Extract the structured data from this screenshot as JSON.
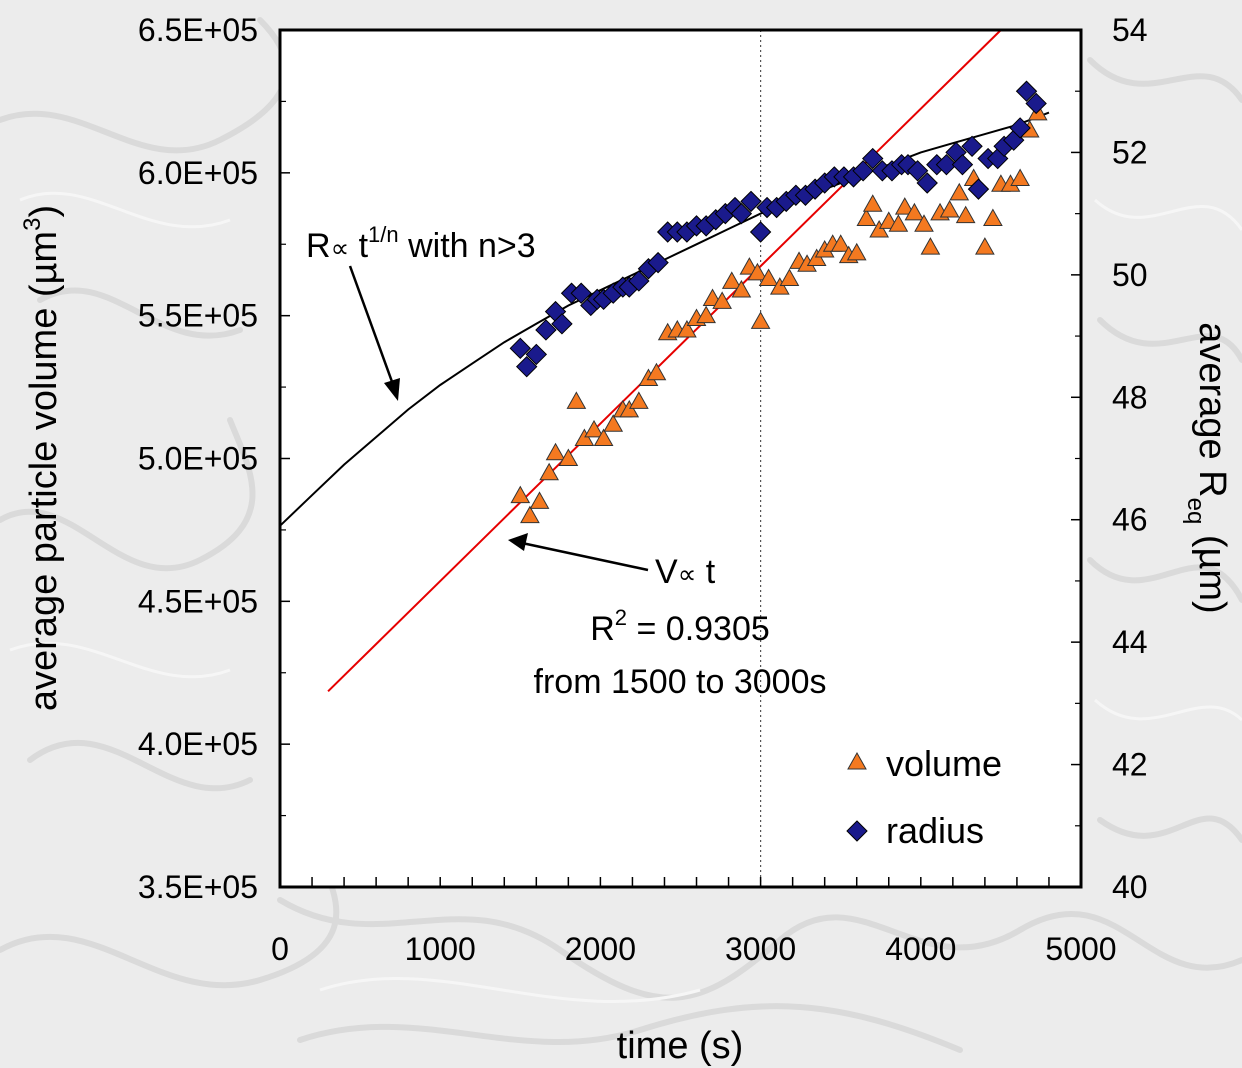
{
  "chart_data": {
    "type": "scatter",
    "x_axis": {
      "label": "time (s)",
      "range": [
        0,
        5000
      ],
      "ticks": [
        "0",
        "1000",
        "2000",
        "3000",
        "4000",
        "5000"
      ],
      "minor_step": 200
    },
    "y_left": {
      "label_prefix": "average particle volume (µm",
      "label_sup": "3",
      "label_suffix": ")",
      "range": [
        350000,
        650000
      ],
      "ticks": [
        "3.5E+05",
        "4.0E+05",
        "4.5E+05",
        "5.0E+05",
        "5.5E+05",
        "6.0E+05",
        "6.5E+05"
      ],
      "tick_values": [
        350000,
        400000,
        450000,
        500000,
        550000,
        600000,
        650000
      ]
    },
    "y_right": {
      "label_prefix": "average R",
      "label_sub": "eq",
      "label_suffix": " (µm)",
      "range": [
        40,
        54
      ],
      "ticks": [
        "40",
        "42",
        "44",
        "46",
        "48",
        "50",
        "52",
        "54"
      ],
      "tick_values": [
        40,
        42,
        44,
        46,
        48,
        50,
        52,
        54
      ]
    },
    "reference_line_x": 3000,
    "legend": {
      "position": "bottom-right",
      "items": [
        {
          "label": "volume",
          "marker": "triangle",
          "color": "#f47920"
        },
        {
          "label": "radius",
          "marker": "diamond",
          "color": "#1a1a8c"
        }
      ]
    },
    "annotations": {
      "power_law": {
        "prefix": "R",
        "symbol": "∝",
        "t": " t",
        "sup": "1/n",
        "suffix": " with n>3"
      },
      "linear": {
        "prefix": "V",
        "symbol": "∝",
        "suffix": " t"
      },
      "r2": {
        "prefix": "R",
        "sup": "2",
        "suffix": " = 0.9305"
      },
      "range_note": "from 1500 to 3000s"
    },
    "linear_fit": {
      "axis": "left",
      "x": [
        300,
        4500
      ],
      "y": [
        418500,
        650000
      ],
      "color": "#e60000"
    },
    "model_curve": {
      "axis": "right",
      "color": "#000000",
      "x": [
        0,
        200,
        400,
        600,
        800,
        1000,
        1200,
        1400,
        1600,
        1800,
        2000,
        2200,
        2400,
        2600,
        2800,
        3000,
        3200,
        3400,
        3600,
        3800,
        4000,
        4200,
        4400,
        4600,
        4800
      ],
      "y": [
        45.9,
        46.4,
        46.9,
        47.35,
        47.8,
        48.2,
        48.55,
        48.9,
        49.2,
        49.5,
        49.75,
        50.0,
        50.25,
        50.5,
        50.75,
        51.0,
        51.2,
        51.4,
        51.6,
        51.8,
        52.0,
        52.15,
        52.3,
        52.45,
        52.65
      ]
    },
    "series": [
      {
        "name": "volume",
        "axis": "left",
        "marker": "triangle",
        "color": "#f47920",
        "points": [
          [
            1500,
            487000
          ],
          [
            1560,
            480000
          ],
          [
            1620,
            485000
          ],
          [
            1680,
            495000
          ],
          [
            1720,
            502000
          ],
          [
            1800,
            500000
          ],
          [
            1850,
            520000
          ],
          [
            1900,
            507000
          ],
          [
            1960,
            510000
          ],
          [
            2020,
            507000
          ],
          [
            2080,
            512000
          ],
          [
            2140,
            517000
          ],
          [
            2180,
            517000
          ],
          [
            2240,
            520000
          ],
          [
            2300,
            528000
          ],
          [
            2350,
            530000
          ],
          [
            2420,
            544000
          ],
          [
            2480,
            545000
          ],
          [
            2540,
            545000
          ],
          [
            2600,
            549000
          ],
          [
            2660,
            550000
          ],
          [
            2700,
            556000
          ],
          [
            2760,
            555000
          ],
          [
            2820,
            562000
          ],
          [
            2880,
            559000
          ],
          [
            2930,
            567000
          ],
          [
            2980,
            565000
          ],
          [
            3000,
            548000
          ],
          [
            3050,
            563000
          ],
          [
            3120,
            560000
          ],
          [
            3180,
            563000
          ],
          [
            3240,
            569000
          ],
          [
            3290,
            568000
          ],
          [
            3350,
            570000
          ],
          [
            3400,
            573000
          ],
          [
            3450,
            575000
          ],
          [
            3500,
            575000
          ],
          [
            3550,
            571000
          ],
          [
            3600,
            572000
          ],
          [
            3660,
            584000
          ],
          [
            3700,
            589000
          ],
          [
            3740,
            580000
          ],
          [
            3800,
            583000
          ],
          [
            3860,
            582000
          ],
          [
            3900,
            588000
          ],
          [
            3960,
            586000
          ],
          [
            4020,
            582000
          ],
          [
            4060,
            574000
          ],
          [
            4120,
            586000
          ],
          [
            4180,
            587000
          ],
          [
            4240,
            593000
          ],
          [
            4280,
            585000
          ],
          [
            4330,
            598000
          ],
          [
            4400,
            574000
          ],
          [
            4450,
            584000
          ],
          [
            4500,
            596000
          ],
          [
            4560,
            596000
          ],
          [
            4620,
            598000
          ],
          [
            4680,
            615000
          ],
          [
            4730,
            621000
          ]
        ]
      },
      {
        "name": "radius",
        "axis": "right",
        "marker": "diamond",
        "color": "#1a1a8c",
        "points": [
          [
            1500,
            48.8
          ],
          [
            1540,
            48.5
          ],
          [
            1600,
            48.7
          ],
          [
            1660,
            49.1
          ],
          [
            1720,
            49.4
          ],
          [
            1760,
            49.2
          ],
          [
            1820,
            49.7
          ],
          [
            1880,
            49.7
          ],
          [
            1940,
            49.5
          ],
          [
            1980,
            49.6
          ],
          [
            2020,
            49.6
          ],
          [
            2080,
            49.7
          ],
          [
            2140,
            49.8
          ],
          [
            2180,
            49.8
          ],
          [
            2240,
            49.9
          ],
          [
            2300,
            50.1
          ],
          [
            2360,
            50.2
          ],
          [
            2420,
            50.7
          ],
          [
            2480,
            50.7
          ],
          [
            2540,
            50.7
          ],
          [
            2600,
            50.8
          ],
          [
            2660,
            50.8
          ],
          [
            2720,
            50.9
          ],
          [
            2780,
            51.0
          ],
          [
            2840,
            51.1
          ],
          [
            2880,
            51.0
          ],
          [
            2940,
            51.2
          ],
          [
            3000,
            50.7
          ],
          [
            3040,
            51.1
          ],
          [
            3100,
            51.1
          ],
          [
            3160,
            51.2
          ],
          [
            3220,
            51.3
          ],
          [
            3280,
            51.3
          ],
          [
            3340,
            51.4
          ],
          [
            3400,
            51.5
          ],
          [
            3460,
            51.6
          ],
          [
            3520,
            51.6
          ],
          [
            3580,
            51.6
          ],
          [
            3640,
            51.7
          ],
          [
            3700,
            51.9
          ],
          [
            3760,
            51.7
          ],
          [
            3820,
            51.7
          ],
          [
            3880,
            51.8
          ],
          [
            3920,
            51.8
          ],
          [
            3980,
            51.7
          ],
          [
            4040,
            51.5
          ],
          [
            4100,
            51.8
          ],
          [
            4160,
            51.8
          ],
          [
            4220,
            52.0
          ],
          [
            4260,
            51.8
          ],
          [
            4320,
            52.1
          ],
          [
            4360,
            51.4
          ],
          [
            4420,
            51.9
          ],
          [
            4480,
            51.9
          ],
          [
            4520,
            52.1
          ],
          [
            4580,
            52.2
          ],
          [
            4620,
            52.4
          ],
          [
            4660,
            53.0
          ],
          [
            4720,
            52.8
          ]
        ]
      }
    ]
  }
}
